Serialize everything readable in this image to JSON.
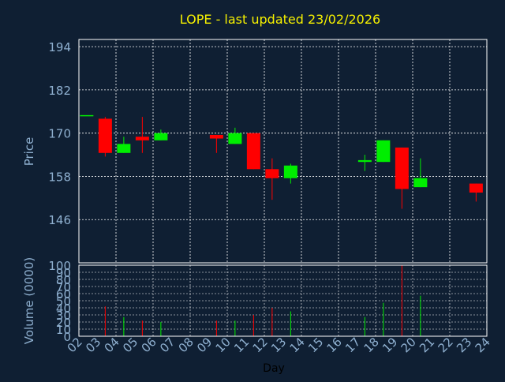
{
  "page": {
    "background": "#0f1f33",
    "text_color": "#8fb0d0",
    "title_color": "#f5f000",
    "up_color": "#00ee00",
    "down_color": "#ff0000"
  },
  "chart_data": {
    "type": "candlestick",
    "title": "LOPE - last updated 23/02/2026",
    "xlabel": "Day",
    "ylabel": "Price",
    "volume_label": "Volume (0000)",
    "grid": true,
    "price_ylim": [
      134,
      196
    ],
    "price_ticks": [
      "146",
      "158",
      "170",
      "182",
      "194"
    ],
    "volume_ylim": [
      0,
      100
    ],
    "volume_ticks": [
      "0",
      "10",
      "20",
      "30",
      "40",
      "50",
      "60",
      "70",
      "80",
      "90",
      "100"
    ],
    "days": [
      "02",
      "03",
      "04",
      "05",
      "06",
      "07",
      "08",
      "09",
      "10",
      "11",
      "12",
      "13",
      "14",
      "15",
      "16",
      "17",
      "18",
      "19",
      "20",
      "21",
      "22",
      "23",
      "24"
    ],
    "candles": [
      {
        "day": "02",
        "open": 175.0,
        "high": 175.0,
        "low": 175.0,
        "close": 175.0,
        "volume": 0
      },
      {
        "day": "03",
        "open": 174.0,
        "high": 174.5,
        "low": 163.5,
        "close": 164.5,
        "volume": 42
      },
      {
        "day": "04",
        "open": 164.5,
        "high": 169.0,
        "low": 164.5,
        "close": 167.0,
        "volume": 27
      },
      {
        "day": "05",
        "open": 169.0,
        "high": 174.5,
        "low": 164.5,
        "close": 168.0,
        "volume": 22
      },
      {
        "day": "06",
        "open": 168.0,
        "high": 171.0,
        "low": 168.0,
        "close": 170.0,
        "volume": 20
      },
      {
        "day": "09",
        "open": 169.5,
        "high": 169.5,
        "low": 164.5,
        "close": 168.5,
        "volume": 22
      },
      {
        "day": "10",
        "open": 167.0,
        "high": 171.5,
        "low": 167.0,
        "close": 170.0,
        "volume": 22
      },
      {
        "day": "11",
        "open": 170.0,
        "high": 170.0,
        "low": 160.0,
        "close": 160.0,
        "volume": 30
      },
      {
        "day": "12",
        "open": 160.0,
        "high": 163.0,
        "low": 151.5,
        "close": 157.5,
        "volume": 40
      },
      {
        "day": "13",
        "open": 157.5,
        "high": 161.5,
        "low": 156.0,
        "close": 161.0,
        "volume": 35
      },
      {
        "day": "17",
        "open": 162.0,
        "high": 164.0,
        "low": 159.5,
        "close": 162.5,
        "volume": 27
      },
      {
        "day": "18",
        "open": 162.0,
        "high": 168.0,
        "low": 162.0,
        "close": 168.0,
        "volume": 47
      },
      {
        "day": "19",
        "open": 166.0,
        "high": 166.0,
        "low": 149.0,
        "close": 154.5,
        "volume": 100
      },
      {
        "day": "20",
        "open": 155.0,
        "high": 163.0,
        "low": 155.0,
        "close": 157.5,
        "volume": 57
      },
      {
        "day": "23",
        "open": 156.0,
        "high": 156.0,
        "low": 151.0,
        "close": 153.5,
        "volume": 0
      }
    ]
  }
}
